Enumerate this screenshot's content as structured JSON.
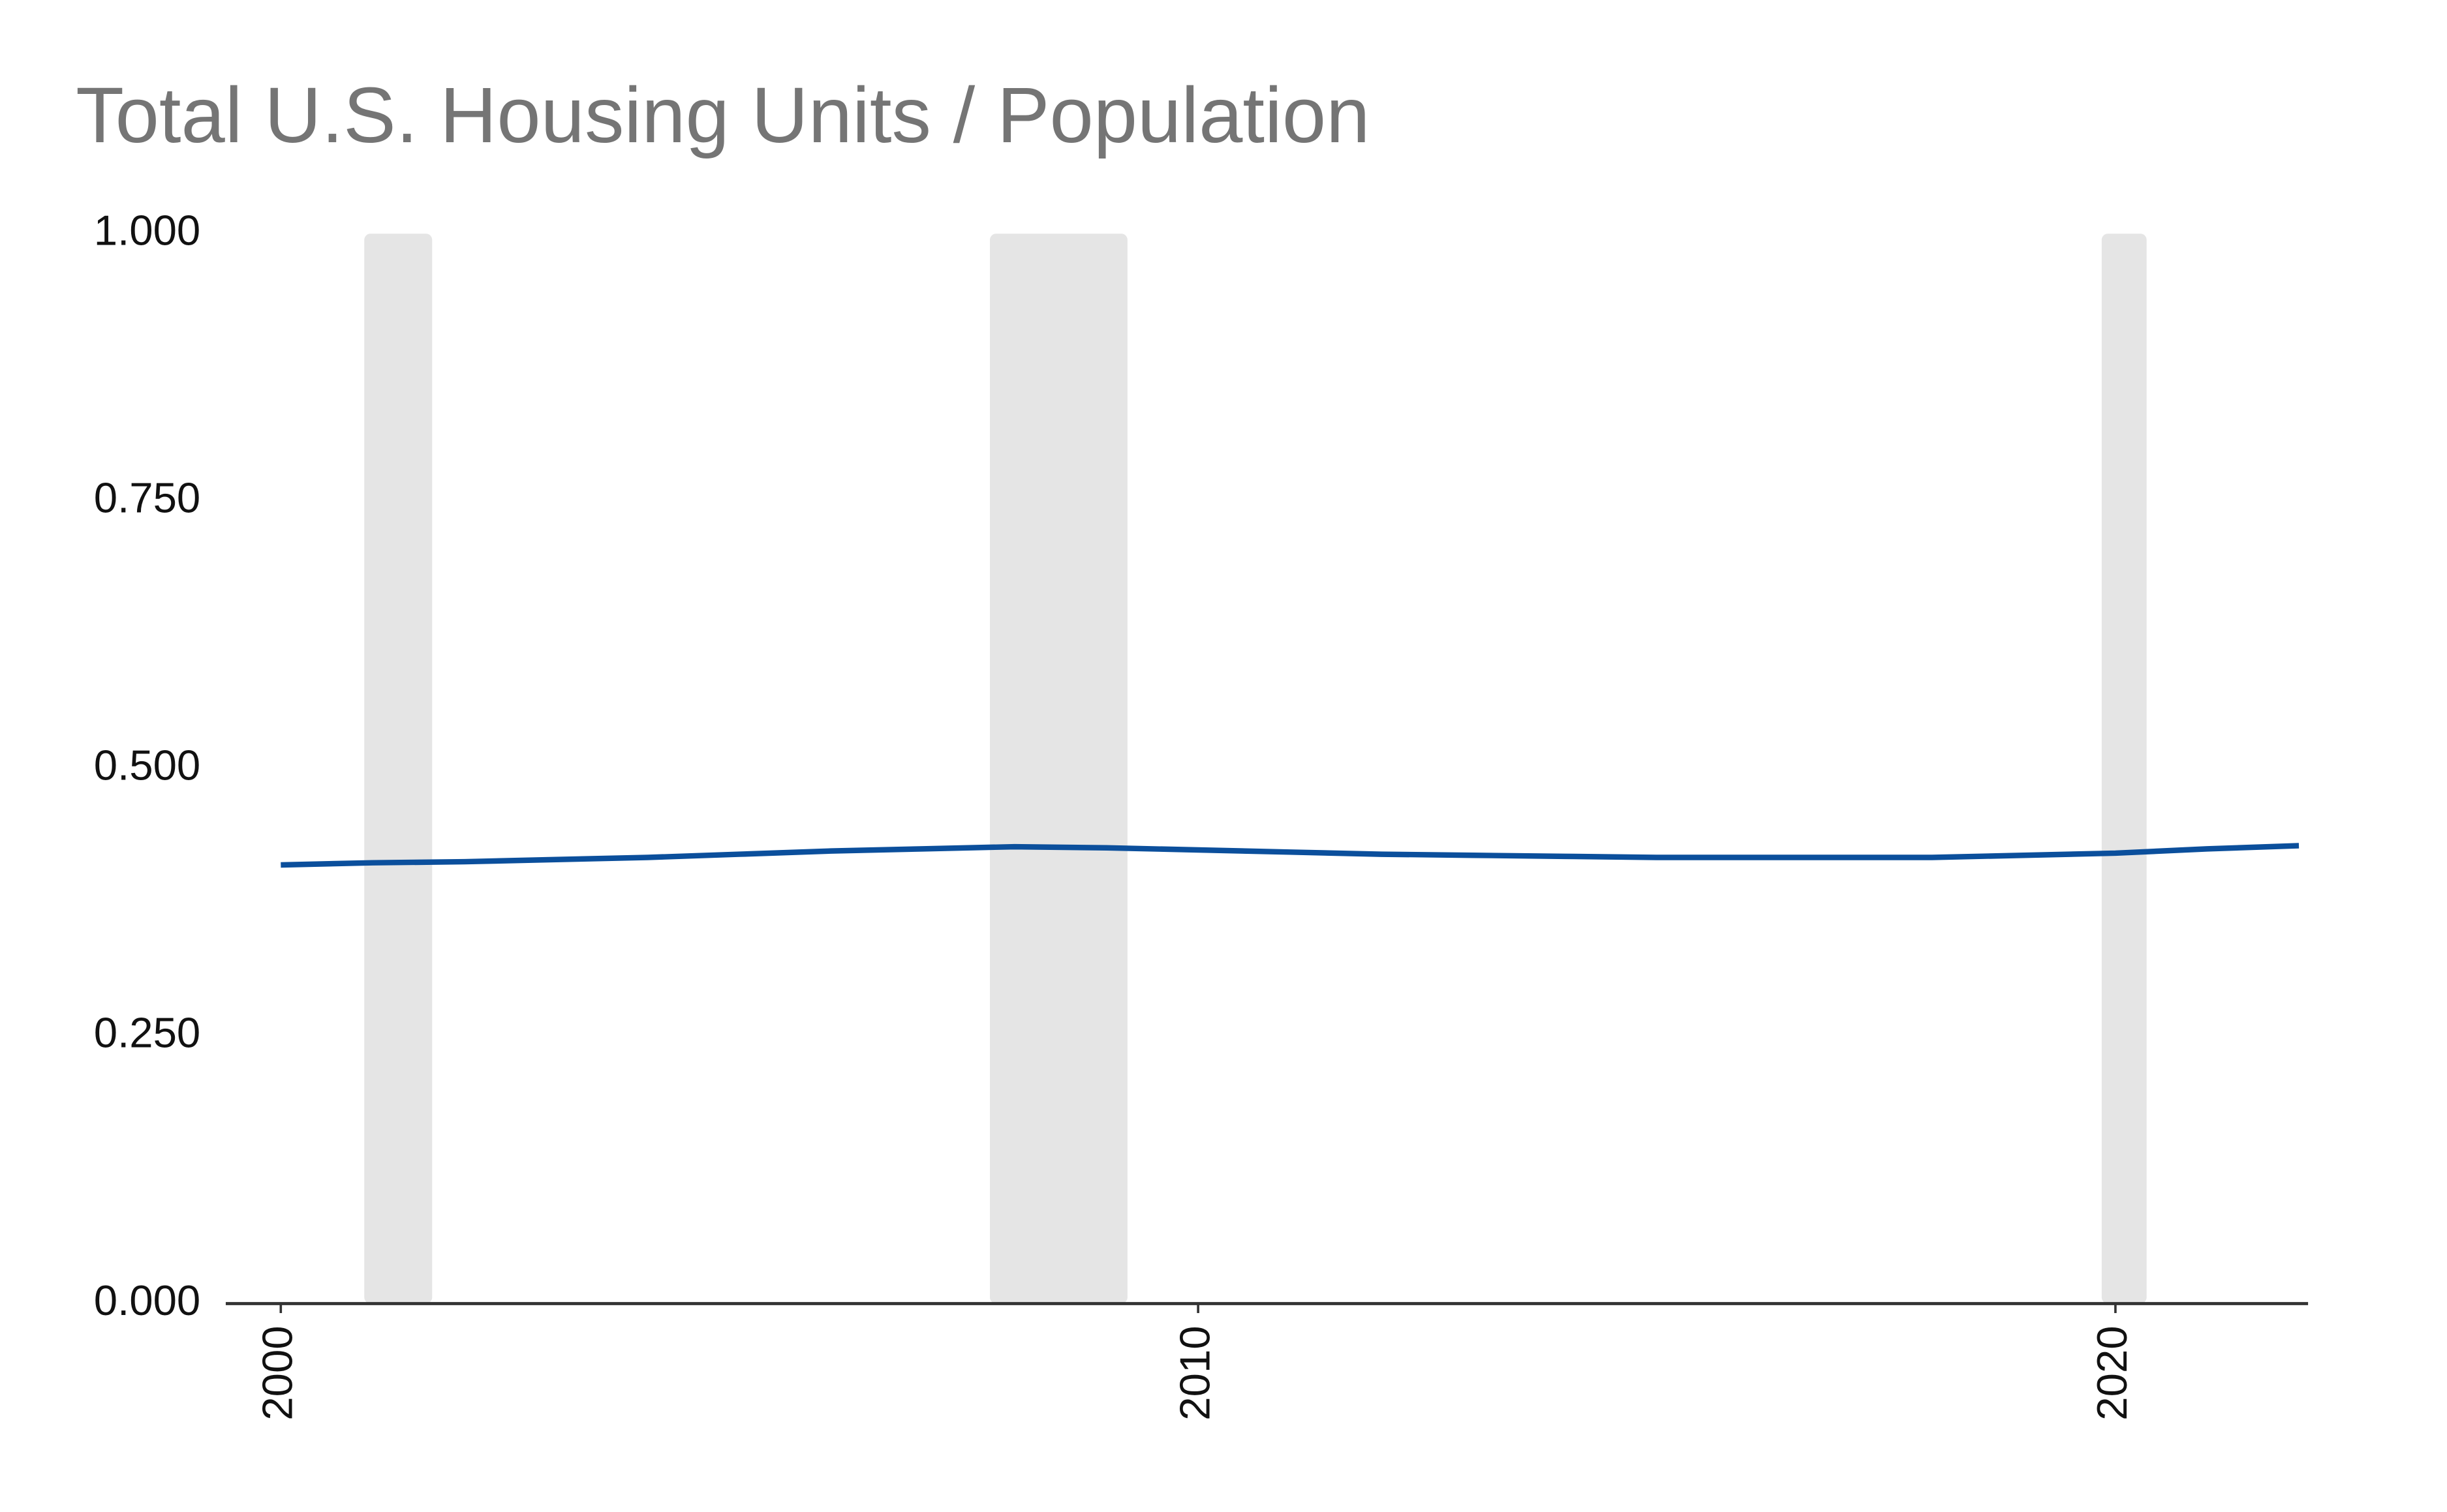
{
  "chart_data": {
    "type": "line",
    "title": "Total U.S. Housing Units / Population",
    "x": [
      2000,
      2001,
      2002,
      2003,
      2004,
      2005,
      2006,
      2007,
      2008,
      2009,
      2010,
      2011,
      2012,
      2013,
      2014,
      2015,
      2016,
      2017,
      2018,
      2019,
      2020,
      2021,
      2022
    ],
    "series": [
      {
        "color": "#0b4f9c",
        "values": [
          0.41,
          0.412,
          0.413,
          0.415,
          0.417,
          0.42,
          0.423,
          0.425,
          0.427,
          0.426,
          0.424,
          0.422,
          0.42,
          0.419,
          0.418,
          0.417,
          0.417,
          0.417,
          0.417,
          0.419,
          0.421,
          0.425,
          0.428
        ]
      }
    ],
    "recessions": [
      [
        2000.91,
        2001.65
      ],
      [
        2007.73,
        2009.23
      ],
      [
        2019.85,
        2020.34
      ]
    ],
    "recession_color": "#e5e5e5",
    "xlim": [
      1999.4,
      2022.1
    ],
    "xticks": [
      2000,
      2010,
      2020
    ],
    "ylim": [
      0,
      1
    ],
    "yticks": [
      {
        "value": 0,
        "label": "0.000"
      },
      {
        "value": 0.25,
        "label": "0.250"
      },
      {
        "value": 0.5,
        "label": "0.500"
      },
      {
        "value": 0.75,
        "label": "0.750"
      },
      {
        "value": 1,
        "label": "1.000"
      }
    ],
    "grid": false
  }
}
